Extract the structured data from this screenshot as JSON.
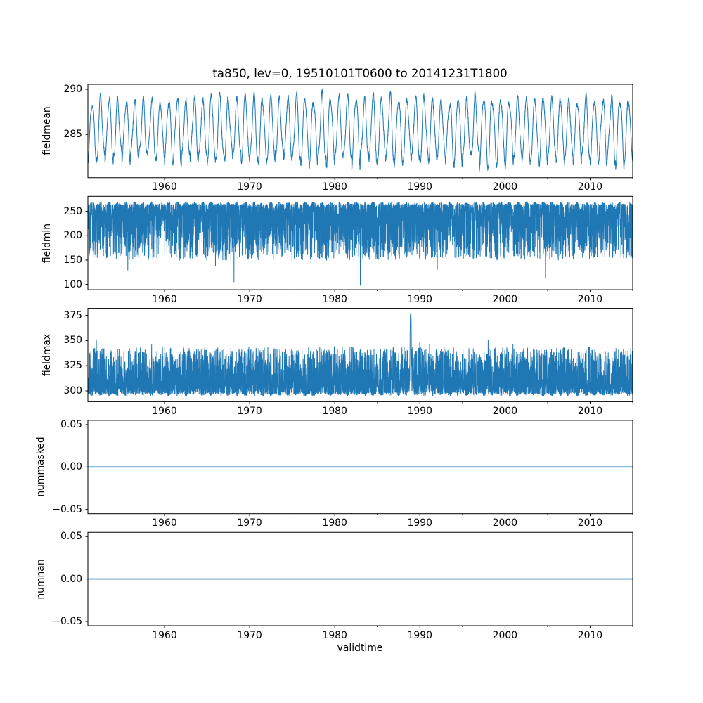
{
  "figure": {
    "title": "ta850, lev=0, 19510101T0600 to 20141231T1800",
    "xlabel": "validtime",
    "background_color": "#ffffff",
    "line_color": "#1f77b4",
    "axis_color": "#000000"
  },
  "x_axis": {
    "lim": [
      1951,
      2015
    ],
    "major_ticks": [
      1960,
      1970,
      1980,
      1990,
      2000,
      2010
    ],
    "major_tick_labels": [
      "1960",
      "1970",
      "1980",
      "1990",
      "2000",
      "2010"
    ],
    "minor_ticks": [
      1955,
      1965,
      1975,
      1985,
      1995,
      2005,
      2015
    ],
    "samples_per_year": 80,
    "start_year": 1951,
    "end_year": 2015
  },
  "chart_data": [
    {
      "name": "fieldmean",
      "type": "line",
      "ylabel": "fieldmean",
      "ylim": [
        280.2,
        290.55
      ],
      "yticks": [
        285,
        290
      ],
      "ytick_labels": [
        "285",
        "290"
      ],
      "generator": "seasonal",
      "params": {
        "mean": 285.5,
        "annual_amp": 3.35,
        "amp_jitter": 0.24,
        "harmonic2": 0.55,
        "noise": 0.35,
        "seed": 101
      },
      "summary": {
        "pattern": "regular annual cycle 1951-2015",
        "annual_peak_range": [
          288.6,
          290.4
        ],
        "annual_trough_range": [
          281.0,
          283.2
        ]
      }
    },
    {
      "name": "fieldmin",
      "type": "line",
      "ylabel": "fieldmin",
      "ylim": [
        89.2,
        280.8
      ],
      "yticks": [
        100,
        150,
        200,
        250
      ],
      "ytick_labels": [
        "100",
        "150",
        "200",
        "250"
      ],
      "generator": "lower_extremes",
      "params": {
        "envelope_base": 266.3,
        "envelope_bump": 4.8,
        "envelope_jitter": 1.4,
        "dip_min": 2,
        "dip_scale": 115,
        "dip_power": 2.2,
        "rare_prob": 0.006,
        "rare_extra": 55,
        "floor": 97.5,
        "seed": 202
      },
      "events": [
        {
          "year": 1983.0,
          "value": 98
        }
      ],
      "summary": {
        "pattern": "dense band from ~160 up to scalloped top near 270, downward spikes",
        "typical_band": [
          160,
          272
        ],
        "extreme_min": 98
      }
    },
    {
      "name": "fieldmax",
      "type": "line",
      "ylabel": "fieldmax",
      "ylim": [
        289.3,
        381.9
      ],
      "yticks": [
        300,
        325,
        350,
        375
      ],
      "ytick_labels": [
        "300",
        "325",
        "350",
        "375"
      ],
      "generator": "upper_extremes",
      "params": {
        "envelope_base": 296.6,
        "envelope_bump": 2.3,
        "envelope_jitter": 1.2,
        "spike_min": 1.5,
        "spike_scale": 46,
        "spike_power": 2.0,
        "rare_prob": 0.012,
        "rare_extra": 13,
        "seed": 303
      },
      "events": [
        {
          "year": 1988.92,
          "value": 377
        }
      ],
      "summary": {
        "pattern": "dense band ~294-340 with upward spikes to ~355, single extreme spike",
        "typical_band": [
          294,
          345
        ],
        "extreme_max": 377,
        "extreme_max_year": 1989
      }
    },
    {
      "name": "nummasked",
      "type": "line",
      "ylabel": "nummasked",
      "ylim": [
        -0.055,
        0.055
      ],
      "yticks": [
        -0.05,
        0,
        0.05
      ],
      "ytick_labels": [
        "−0.05",
        "0.00",
        "0.05"
      ],
      "generator": "constant",
      "params": {
        "value": 0
      },
      "summary": {
        "pattern": "constant zero for entire period"
      }
    },
    {
      "name": "numnan",
      "type": "line",
      "ylabel": "numnan",
      "ylim": [
        -0.055,
        0.055
      ],
      "yticks": [
        -0.05,
        0,
        0.05
      ],
      "ytick_labels": [
        "−0.05",
        "0.00",
        "0.05"
      ],
      "generator": "constant",
      "params": {
        "value": 0
      },
      "summary": {
        "pattern": "constant zero for entire period"
      }
    }
  ]
}
